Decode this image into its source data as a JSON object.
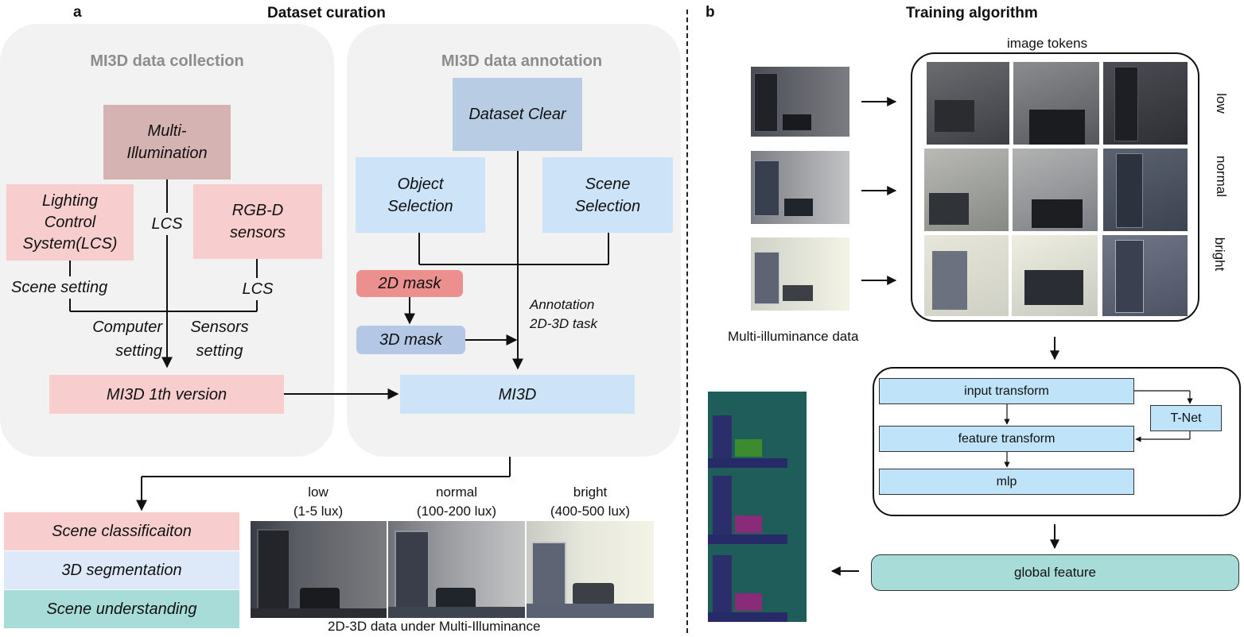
{
  "panel_a": {
    "letter": "a",
    "title": "Dataset curation",
    "collection": {
      "title": "MI3D data collection",
      "multi_illumination": "Multi-\nIllumination",
      "lighting_control": "Lighting\nControl\nSystem(LCS)",
      "rgbd_sensors": "RGB-D\nsensors",
      "lcs_center": "LCS",
      "scene_setting": "Scene setting",
      "lcs_right": "LCS",
      "computer_setting": "Computer\nsetting",
      "sensors_setting": "Sensors\nsetting",
      "first_version": "MI3D 1th version"
    },
    "annotation": {
      "title": "MI3D data annotation",
      "dataset_clear": "Dataset Clear",
      "object_selection": "Object\nSelection",
      "scene_selection": "Scene\nSelection",
      "mask_2d": "2D mask",
      "mask_3d": "3D mask",
      "annotation_task": "Annotation\n2D-3D task",
      "mi3d": "MI3D"
    },
    "tasks": [
      "Scene classificaiton",
      "3D segmentation",
      "Scene understanding"
    ],
    "illumination_levels": [
      {
        "name": "low",
        "range": "(1-5 lux)"
      },
      {
        "name": "normal",
        "range": "(100-200 lux)"
      },
      {
        "name": "bright",
        "range": "(400-500 lux)"
      }
    ],
    "data_caption": "2D-3D data under Multi-Illuminance"
  },
  "panel_b": {
    "letter": "b",
    "title": "Training algorithm",
    "image_tokens": "image tokens",
    "token_rows": [
      "low",
      "normal",
      "bright"
    ],
    "input_caption": "Multi-illuminance data",
    "network": {
      "input_transform": "input transform",
      "t_net": "T-Net",
      "feature_transform": "feature transform",
      "mlp": "mlp"
    },
    "global_feature": "global feature"
  },
  "colors": {
    "pink": "#f7cdcd",
    "dusty_rose": "#d6b3b3",
    "steel_blue": "#b8cce4",
    "light_blue": "#cce3f8",
    "salmon": "#eb8f8f",
    "teal": "#a8dcd8",
    "seg_teal": "#1f5d5a",
    "seg_navy": "#2b2e6b"
  }
}
